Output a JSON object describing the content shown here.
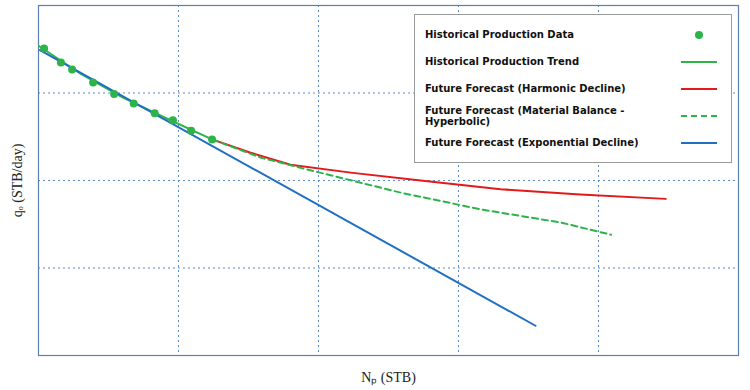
{
  "chart_data": {
    "type": "line",
    "x_label": "Nₚ (STB)",
    "y_label": "qₒ (STB/day)",
    "xlim": [
      0,
      5
    ],
    "ylim": [
      0,
      4
    ],
    "xticks": [
      1,
      2,
      3,
      4
    ],
    "yticks": [
      1,
      2,
      3
    ],
    "grid": true,
    "tick_labels": false,
    "legend": "top-right",
    "series": [
      {
        "name": "Historical Production Data",
        "type": "scatter",
        "marker": "circle",
        "color": "#2db34a",
        "x": [
          0.04,
          0.16,
          0.24,
          0.39,
          0.54,
          0.68,
          0.83,
          0.96,
          1.09,
          1.24
        ],
        "values": [
          3.51,
          3.35,
          3.27,
          3.12,
          2.99,
          2.88,
          2.77,
          2.69,
          2.57,
          2.47
        ]
      },
      {
        "name": "Historical Production Trend",
        "type": "line",
        "line_style": "solid",
        "color": "#2db34a",
        "x": [
          0,
          0.3,
          0.6,
          0.9,
          1.24
        ],
        "values": [
          3.54,
          3.22,
          2.95,
          2.72,
          2.47
        ]
      },
      {
        "name": "Future Forecast (Harmonic Decline)",
        "type": "line",
        "line_style": "solid",
        "color": "#e3191c",
        "x": [
          1.24,
          1.51,
          1.8,
          2.23,
          2.73,
          3.3,
          3.87,
          4.48
        ],
        "values": [
          2.47,
          2.32,
          2.18,
          2.09,
          2.0,
          1.9,
          1.84,
          1.79
        ]
      },
      {
        "name": "Future Forecast (Material Balance - Hyperbolic)",
        "type": "line",
        "line_style": "dashed",
        "color": "#2db34a",
        "x": [
          1.24,
          1.59,
          2.01,
          2.59,
          3.16,
          3.73,
          4.09
        ],
        "values": [
          2.47,
          2.26,
          2.09,
          1.86,
          1.67,
          1.52,
          1.38
        ]
      },
      {
        "name": "Future Forecast (Exponential Decline)",
        "type": "line",
        "line_style": "solid",
        "color": "#1f6fc5",
        "x": [
          0.01,
          3.55
        ],
        "values": [
          3.49,
          0.34
        ]
      }
    ]
  }
}
